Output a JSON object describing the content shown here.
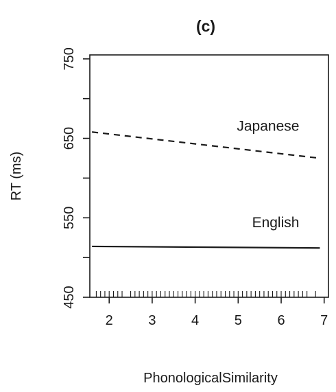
{
  "chart_data": {
    "type": "line",
    "title": "(c)",
    "xlabel": "PhonologicalSimilarity",
    "ylabel": "RT (ms)",
    "xlim": [
      1.55,
      7.1
    ],
    "ylim": [
      450,
      755
    ],
    "x_ticks": [
      2,
      3,
      4,
      5,
      6,
      7
    ],
    "x_tick_labels": [
      "2",
      "3",
      "4",
      "5",
      "6",
      "7"
    ],
    "y_ticks": [
      450,
      550,
      650,
      750
    ],
    "y_tick_labels": [
      "450",
      "550",
      "650",
      "750"
    ],
    "y_minor_ticks": [
      500,
      600,
      700
    ],
    "grid": false,
    "series": [
      {
        "name": "Japanese",
        "style": "dashed",
        "color": "#1a1a1a",
        "x": [
          1.6,
          6.9
        ],
        "y": [
          658,
          625
        ]
      },
      {
        "name": "English",
        "style": "solid",
        "color": "#1a1a1a",
        "x": [
          1.6,
          6.9
        ],
        "y": [
          514,
          512
        ]
      }
    ],
    "rug_x": [
      1.7,
      1.8,
      1.9,
      2.0,
      2.1,
      2.2,
      2.3,
      2.5,
      2.6,
      2.7,
      2.8,
      2.9,
      3.0,
      3.1,
      3.2,
      3.3,
      3.4,
      3.5,
      3.6,
      3.7,
      3.8,
      3.9,
      4.0,
      4.1,
      4.2,
      4.3,
      4.4,
      4.5,
      4.6,
      4.7,
      4.8,
      4.9,
      5.0,
      5.1,
      5.2,
      5.3,
      5.4,
      5.5,
      5.6,
      5.7,
      5.8,
      5.9,
      6.0,
      6.1,
      6.2,
      6.3,
      6.4,
      6.5,
      6.6,
      6.8
    ]
  }
}
